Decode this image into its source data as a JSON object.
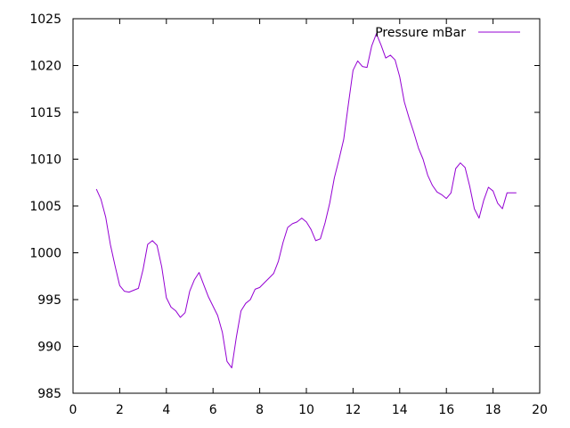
{
  "chart_data": {
    "type": "line",
    "title": "",
    "xlabel": "",
    "ylabel": "",
    "xlim": [
      0,
      20
    ],
    "ylim": [
      985,
      1025
    ],
    "x_ticks": [
      0,
      2,
      4,
      6,
      8,
      10,
      12,
      14,
      16,
      18,
      20
    ],
    "y_ticks": [
      985,
      990,
      995,
      1000,
      1005,
      1010,
      1015,
      1020,
      1025
    ],
    "grid": false,
    "legend_position": "top-right",
    "series": [
      {
        "name": "Pressure mBar",
        "color": "#9400d3",
        "x": [
          1.0,
          1.2,
          1.4,
          1.6,
          1.8,
          2.0,
          2.2,
          2.4,
          2.6,
          2.8,
          3.0,
          3.2,
          3.4,
          3.6,
          3.8,
          4.0,
          4.2,
          4.4,
          4.6,
          4.8,
          5.0,
          5.2,
          5.4,
          5.6,
          5.8,
          6.0,
          6.2,
          6.4,
          6.6,
          6.8,
          7.0,
          7.2,
          7.4,
          7.6,
          7.8,
          8.0,
          8.2,
          8.4,
          8.6,
          8.8,
          9.0,
          9.2,
          9.4,
          9.6,
          9.8,
          10.0,
          10.2,
          10.4,
          10.6,
          10.8,
          11.0,
          11.2,
          11.4,
          11.6,
          11.8,
          12.0,
          12.2,
          12.4,
          12.6,
          12.8,
          13.0,
          13.2,
          13.4,
          13.6,
          13.8,
          14.0,
          14.2,
          14.4,
          14.6,
          14.8,
          15.0,
          15.2,
          15.4,
          15.6,
          15.8,
          16.0,
          16.2,
          16.4,
          16.6,
          16.8,
          17.0,
          17.2,
          17.4,
          17.6,
          17.8,
          18.0,
          18.2,
          18.4,
          18.6,
          18.8,
          19.0
        ],
        "values": [
          1006.8,
          1005.7,
          1003.8,
          1000.9,
          998.6,
          996.5,
          995.9,
          995.8,
          996.0,
          996.2,
          998.2,
          1000.9,
          1001.3,
          1000.8,
          998.5,
          995.2,
          994.2,
          993.8,
          993.1,
          993.6,
          995.9,
          997.1,
          997.9,
          996.6,
          995.3,
          994.3,
          993.3,
          991.5,
          988.4,
          987.7,
          991.0,
          993.8,
          994.6,
          995.0,
          996.1,
          996.3,
          996.8,
          997.3,
          997.8,
          999.1,
          1001.1,
          1002.7,
          1003.1,
          1003.3,
          1003.7,
          1003.3,
          1002.5,
          1001.3,
          1001.5,
          1003.2,
          1005.3,
          1008.0,
          1010.0,
          1012.1,
          1015.9,
          1019.5,
          1020.5,
          1019.9,
          1019.8,
          1022.1,
          1023.4,
          1022.2,
          1020.8,
          1021.1,
          1020.6,
          1018.8,
          1016.1,
          1014.4,
          1012.9,
          1011.2,
          1010.0,
          1008.3,
          1007.2,
          1006.5,
          1006.2,
          1005.8,
          1006.4,
          1009.0,
          1009.6,
          1009.1,
          1007.1,
          1004.7,
          1003.7,
          1005.6,
          1007.0,
          1006.6,
          1005.3,
          1004.7,
          1006.4,
          1006.4,
          1006.4
        ]
      }
    ]
  }
}
